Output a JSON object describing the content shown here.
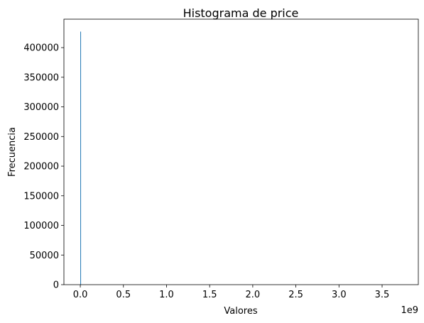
{
  "chart_data": {
    "type": "bar",
    "title": "Histograma de price",
    "xlabel": "Valores",
    "ylabel": "Frecuencia",
    "x_offset_label": "1e9",
    "xlim": [
      -0.19,
      3.92
    ],
    "ylim": [
      0,
      448000
    ],
    "x_ticks": [
      0,
      0.5,
      1,
      1.5,
      2,
      2.5,
      3,
      3.5
    ],
    "x_tick_labels": [
      "0.0",
      "0.5",
      "1.0",
      "1.5",
      "2.0",
      "2.5",
      "3.0",
      "3.5"
    ],
    "y_ticks": [
      0,
      50000,
      100000,
      150000,
      200000,
      250000,
      300000,
      350000,
      400000
    ],
    "y_tick_labels": [
      "0",
      "50000",
      "100000",
      "150000",
      "200000",
      "250000",
      "300000",
      "350000",
      "400000"
    ],
    "bins": [
      {
        "x_start": 0,
        "x_end": 0.005,
        "count": 427000
      }
    ],
    "bar_color": "#1f77b4",
    "grid": false
  }
}
